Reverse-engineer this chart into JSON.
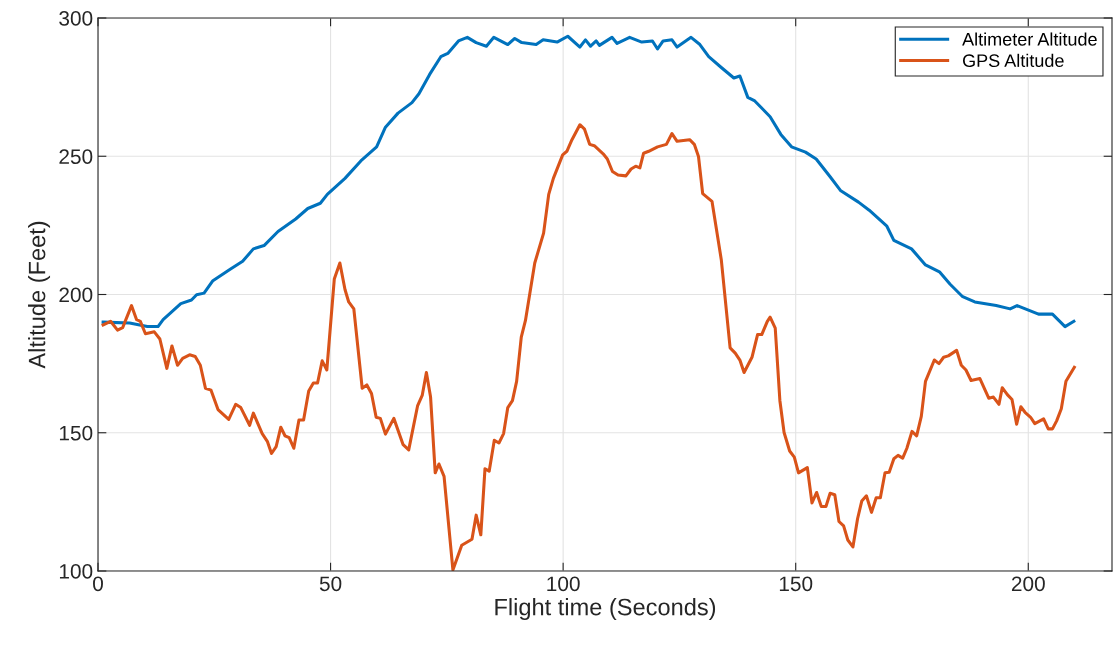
{
  "chart_data": {
    "type": "line",
    "xlabel": "Flight time (Seconds)",
    "ylabel": "Altitude (Feet)",
    "xlim": [
      0,
      218
    ],
    "ylim": [
      100,
      300
    ],
    "xticks": [
      0,
      50,
      100,
      150,
      200
    ],
    "yticks": [
      100,
      150,
      200,
      250,
      300
    ],
    "grid": true,
    "legend": "top right",
    "marker": "none",
    "line_style": "solid",
    "series": [
      {
        "name": "Altimeter Altitude",
        "color": "#0072bd",
        "x": [
          1.1,
          6.8,
          10.6,
          12.9,
          14,
          17.8,
          20.1,
          21.2,
          22.8,
          24.7,
          28.5,
          31.1,
          33.4,
          35.7,
          38.7,
          42.5,
          45.1,
          47.8,
          49.3,
          53.1,
          56.5,
          59.9,
          61.8,
          64.5,
          67.5,
          69,
          71.3,
          73.7,
          75.2,
          77.5,
          79.4,
          81.3,
          83.5,
          85.1,
          88.1,
          89.6,
          91.1,
          94.2,
          95.7,
          98.7,
          101,
          103.6,
          104.8,
          105.9,
          107.1,
          107.8,
          110.5,
          111.6,
          114.3,
          116.9,
          119.2,
          120.3,
          121.5,
          123.4,
          124.5,
          127.5,
          129.4,
          131.3,
          134,
          136.7,
          138,
          139.7,
          141.2,
          144.5,
          146.8,
          149.1,
          152.1,
          154.4,
          157.4,
          159.7,
          163.5,
          165.8,
          169.6,
          171.1,
          174.9,
          177.9,
          180.9,
          183.2,
          185.9,
          188.5,
          193.1,
          196.1,
          197.6,
          202.2,
          205.2,
          207.9,
          209.8
        ],
        "values": [
          190,
          189.7,
          188.4,
          188.4,
          190.9,
          196.7,
          198,
          199.9,
          200.5,
          205,
          209.2,
          212,
          216.5,
          217.7,
          222.8,
          227.3,
          231.1,
          233,
          236.2,
          242,
          248.3,
          253.4,
          260.5,
          265.6,
          269.4,
          272.6,
          279.6,
          286,
          287.2,
          291.7,
          293,
          291.1,
          289.8,
          293,
          290.4,
          292.6,
          291.1,
          290.4,
          292.1,
          291.3,
          293.4,
          289.5,
          292.1,
          289.8,
          291.7,
          290.1,
          293,
          290.8,
          293,
          291.3,
          291.7,
          288.8,
          291.7,
          292.1,
          289.5,
          293,
          290.4,
          286,
          282.1,
          278.3,
          279,
          271.3,
          270,
          264.3,
          257.9,
          253.4,
          251.5,
          249,
          242.6,
          237.5,
          233.4,
          230.5,
          224.7,
          219.6,
          216.5,
          210.7,
          208.2,
          203.7,
          199.2,
          197.3,
          196,
          194.8,
          196,
          192.9,
          192.9,
          188.4,
          190.3
        ]
      },
      {
        "name": "GPS Altitude",
        "color": "#d95319",
        "x": [
          1.1,
          2.7,
          4.2,
          5.3,
          7.2,
          8.3,
          9.1,
          10.2,
          12.1,
          13.3,
          14.8,
          15.9,
          17.1,
          18.2,
          19.7,
          20.9,
          22,
          23.1,
          24.3,
          25.8,
          28.1,
          29.6,
          30.7,
          32.6,
          33.4,
          35.3,
          36.4,
          37.3,
          38.3,
          39.3,
          40.2,
          41.1,
          42.1,
          43.2,
          44.2,
          45.3,
          46.3,
          47.2,
          48.2,
          49.2,
          50.8,
          52,
          53.1,
          53.9,
          55,
          56.8,
          57.8,
          58.8,
          59.8,
          60.7,
          61.8,
          63.6,
          65.6,
          66.8,
          68.7,
          69.7,
          70.6,
          71.5,
          72.5,
          73.3,
          74.4,
          76.3,
          78.2,
          80.4,
          81.3,
          82.3,
          83.2,
          84.1,
          85.2,
          86.2,
          87.2,
          88.1,
          89.1,
          90,
          91,
          91.9,
          93.9,
          95.8,
          96.9,
          97.9,
          99.9,
          100.8,
          101.9,
          103.6,
          104.6,
          105.7,
          106.7,
          108.6,
          109.5,
          110.6,
          111.8,
          113.5,
          114.6,
          115.6,
          116.5,
          117.3,
          118.4,
          120.3,
          122.2,
          123.4,
          124.5,
          127.2,
          128.2,
          129.1,
          130,
          132,
          134,
          135.9,
          137,
          138,
          138.9,
          140.6,
          141.8,
          142.7,
          143.9,
          144.5,
          145.6,
          146.6,
          147.5,
          148.7,
          149.7,
          150.6,
          152.5,
          153.5,
          154.5,
          155.5,
          156.5,
          157.4,
          158.4,
          159.3,
          160.3,
          161.2,
          162.3,
          163.3,
          164.2,
          165.2,
          166.3,
          167.3,
          168.2,
          169.2,
          170.1,
          171.1,
          172,
          173,
          173.9,
          175,
          176,
          177,
          177.9,
          179.8,
          180.8,
          181.8,
          182.8,
          184.6,
          185.6,
          186.6,
          187.7,
          189.6,
          191.5,
          192.5,
          193.7,
          194.4,
          195.5,
          196.5,
          197.5,
          198.4,
          199.3,
          200.5,
          201.4,
          203.3,
          204.3,
          205.2,
          206.1,
          207.1,
          208.1,
          209.9
        ],
        "values": [
          189,
          190.3,
          187.1,
          188,
          196,
          190.9,
          190.3,
          185.8,
          186.5,
          183.9,
          173.3,
          181.4,
          174.4,
          176.9,
          178.2,
          177.6,
          174.4,
          166.1,
          165.4,
          158.4,
          154.8,
          160.3,
          159.1,
          152.7,
          157.1,
          149.7,
          146.9,
          142.5,
          145,
          152,
          148.9,
          148.2,
          144.4,
          154.6,
          154.6,
          165.1,
          168,
          168,
          176,
          172.7,
          205.6,
          211.4,
          201.8,
          197.3,
          194.8,
          166.1,
          167.3,
          164.2,
          155.6,
          155.2,
          149.5,
          155.2,
          145.7,
          143.8,
          159.7,
          163.5,
          171.8,
          162.9,
          135.5,
          138.7,
          134.2,
          100.4,
          109.3,
          111.5,
          120.2,
          113.1,
          137,
          136.1,
          147.3,
          146.3,
          149.7,
          159.1,
          161.6,
          168.6,
          184.6,
          190.6,
          211.4,
          222.2,
          236.2,
          242,
          250.5,
          251.8,
          256,
          261.4,
          259.8,
          254.3,
          253.8,
          250.9,
          249,
          244.5,
          243.2,
          242.9,
          245.4,
          246.4,
          245.8,
          251.1,
          251.8,
          253.4,
          254.3,
          258.2,
          255.4,
          256,
          254.3,
          249.9,
          236.5,
          233.7,
          212.6,
          180.7,
          178.8,
          176.3,
          171.8,
          177.3,
          185.5,
          185.5,
          190.3,
          191.8,
          187.8,
          161.6,
          150.1,
          143.4,
          141.2,
          135.5,
          137.4,
          124.6,
          128.4,
          123.3,
          123.3,
          128.1,
          127.6,
          117.9,
          116.3,
          111.2,
          108.7,
          118.9,
          125.3,
          127.2,
          121.2,
          126.5,
          126.5,
          135.5,
          135.7,
          140.6,
          141.8,
          140.8,
          144.4,
          150.5,
          148.9,
          155.9,
          168.6,
          176.3,
          175,
          177.3,
          177.8,
          179.8,
          174.4,
          172.7,
          168.9,
          169.6,
          162.5,
          162.9,
          160.3,
          166.3,
          163.8,
          162,
          153.1,
          159.4,
          157.4,
          155.6,
          153.3,
          155,
          151.4,
          151.4,
          154.3,
          158.7,
          168.6,
          173.7
        ]
      }
    ]
  }
}
